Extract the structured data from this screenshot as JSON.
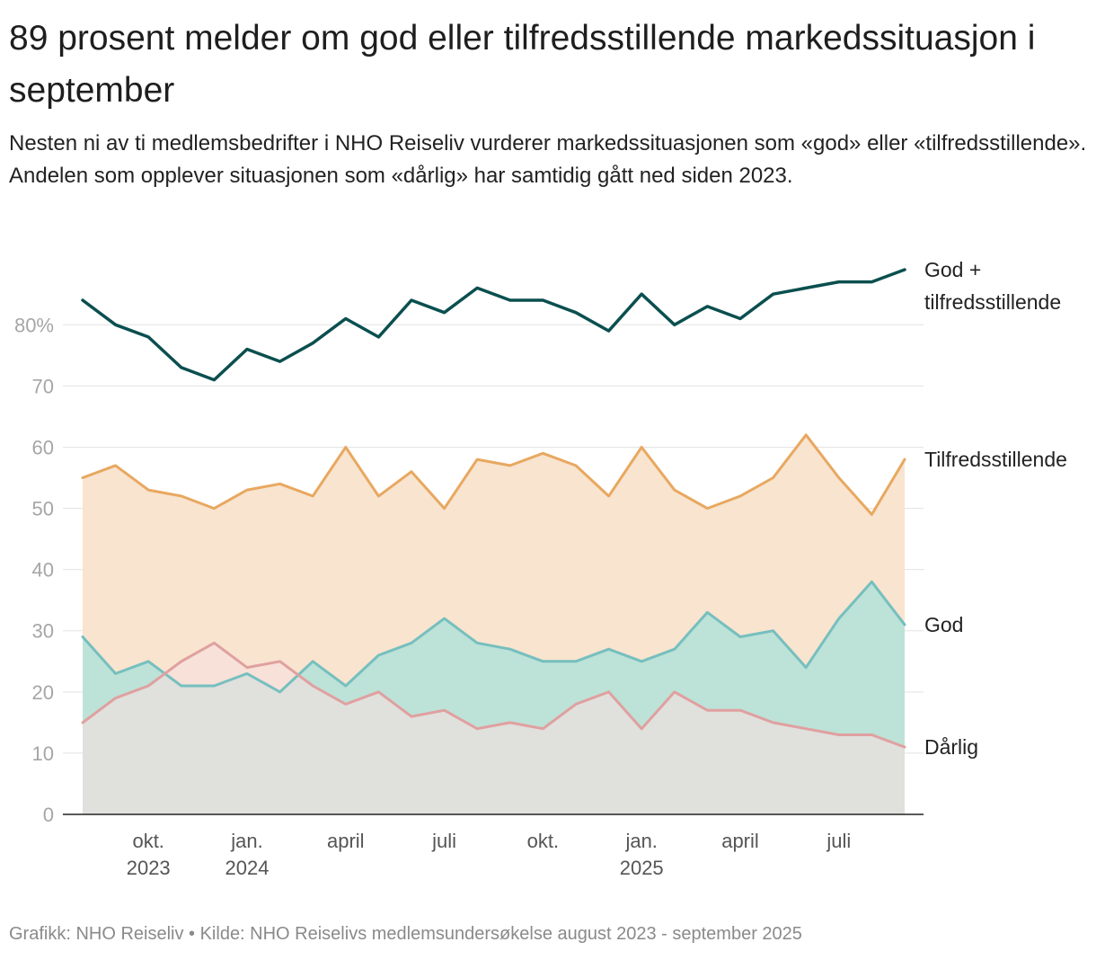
{
  "title": "89 prosent melder om god eller tilfredsstillende markedssituasjon i september",
  "subtitle": "Nesten ni av ti medlemsbedrifter i NHO Reiseliv vurderer markedssituasjonen som «god» eller «tilfredsstillende». Andelen som opplever situasjonen som «dårlig» har samtidig gått ned siden 2023.",
  "footer": "Grafikk: NHO Reiseliv • Kilde: NHO Reiselivs medlemsundersøkelse august 2023 - september 2025",
  "chart_data": {
    "type": "area",
    "x_label_note": "Monthly, August 2023 – September 2025",
    "ylim": [
      0,
      89
    ],
    "y_ticks": [
      {
        "value": 0,
        "label": "0"
      },
      {
        "value": 10,
        "label": "10"
      },
      {
        "value": 20,
        "label": "20"
      },
      {
        "value": 30,
        "label": "30"
      },
      {
        "value": 40,
        "label": "40"
      },
      {
        "value": 50,
        "label": "50"
      },
      {
        "value": 60,
        "label": "60"
      },
      {
        "value": 70,
        "label": "70"
      },
      {
        "value": 80,
        "label": "80%"
      }
    ],
    "x_ticks": [
      {
        "index": 2,
        "label": "okt.",
        "sublabel": "2023"
      },
      {
        "index": 5,
        "label": "jan.",
        "sublabel": "2024"
      },
      {
        "index": 8,
        "label": "april",
        "sublabel": ""
      },
      {
        "index": 11,
        "label": "juli",
        "sublabel": ""
      },
      {
        "index": 14,
        "label": "okt.",
        "sublabel": ""
      },
      {
        "index": 17,
        "label": "jan.",
        "sublabel": "2025"
      },
      {
        "index": 20,
        "label": "april",
        "sublabel": ""
      },
      {
        "index": 23,
        "label": "juli",
        "sublabel": ""
      }
    ],
    "series": [
      {
        "name": "Tilfredsstillende",
        "label": "Tilfredsstillende",
        "label_lines": [
          "Tilfredsstillende"
        ],
        "color": "#e8a860",
        "fill": "#f8e4cf",
        "values": [
          55,
          57,
          53,
          52,
          50,
          53,
          54,
          52,
          60,
          52,
          56,
          50,
          58,
          57,
          59,
          57,
          52,
          60,
          53,
          50,
          52,
          55,
          62,
          55,
          49,
          58
        ]
      },
      {
        "name": "God",
        "label": "God",
        "label_lines": [
          "God"
        ],
        "color": "#76bfbf",
        "fill": "#b3e2d8",
        "values": [
          29,
          23,
          25,
          21,
          21,
          23,
          20,
          25,
          21,
          26,
          28,
          32,
          28,
          27,
          25,
          25,
          27,
          25,
          27,
          33,
          29,
          30,
          24,
          32,
          38,
          31
        ]
      },
      {
        "name": "Dårlig",
        "label": "Dårlig",
        "label_lines": [
          "Dårlig"
        ],
        "color": "#e0a0a0",
        "fill": "#f6dfdf",
        "values": [
          15,
          19,
          21,
          25,
          28,
          24,
          25,
          21,
          18,
          20,
          16,
          17,
          14,
          15,
          14,
          18,
          20,
          14,
          20,
          17,
          17,
          15,
          14,
          13,
          13,
          11
        ]
      },
      {
        "name": "God + tilfredsstillende",
        "label": "God + tilfredsstillende",
        "label_lines": [
          "God +",
          "tilfredsstillende"
        ],
        "color": "#0b4f4f",
        "fill": "none",
        "values": [
          84,
          80,
          78,
          73,
          71,
          76,
          74,
          77,
          81,
          78,
          84,
          82,
          86,
          84,
          84,
          82,
          79,
          85,
          80,
          83,
          81,
          85,
          86,
          87,
          87,
          89
        ]
      }
    ]
  }
}
